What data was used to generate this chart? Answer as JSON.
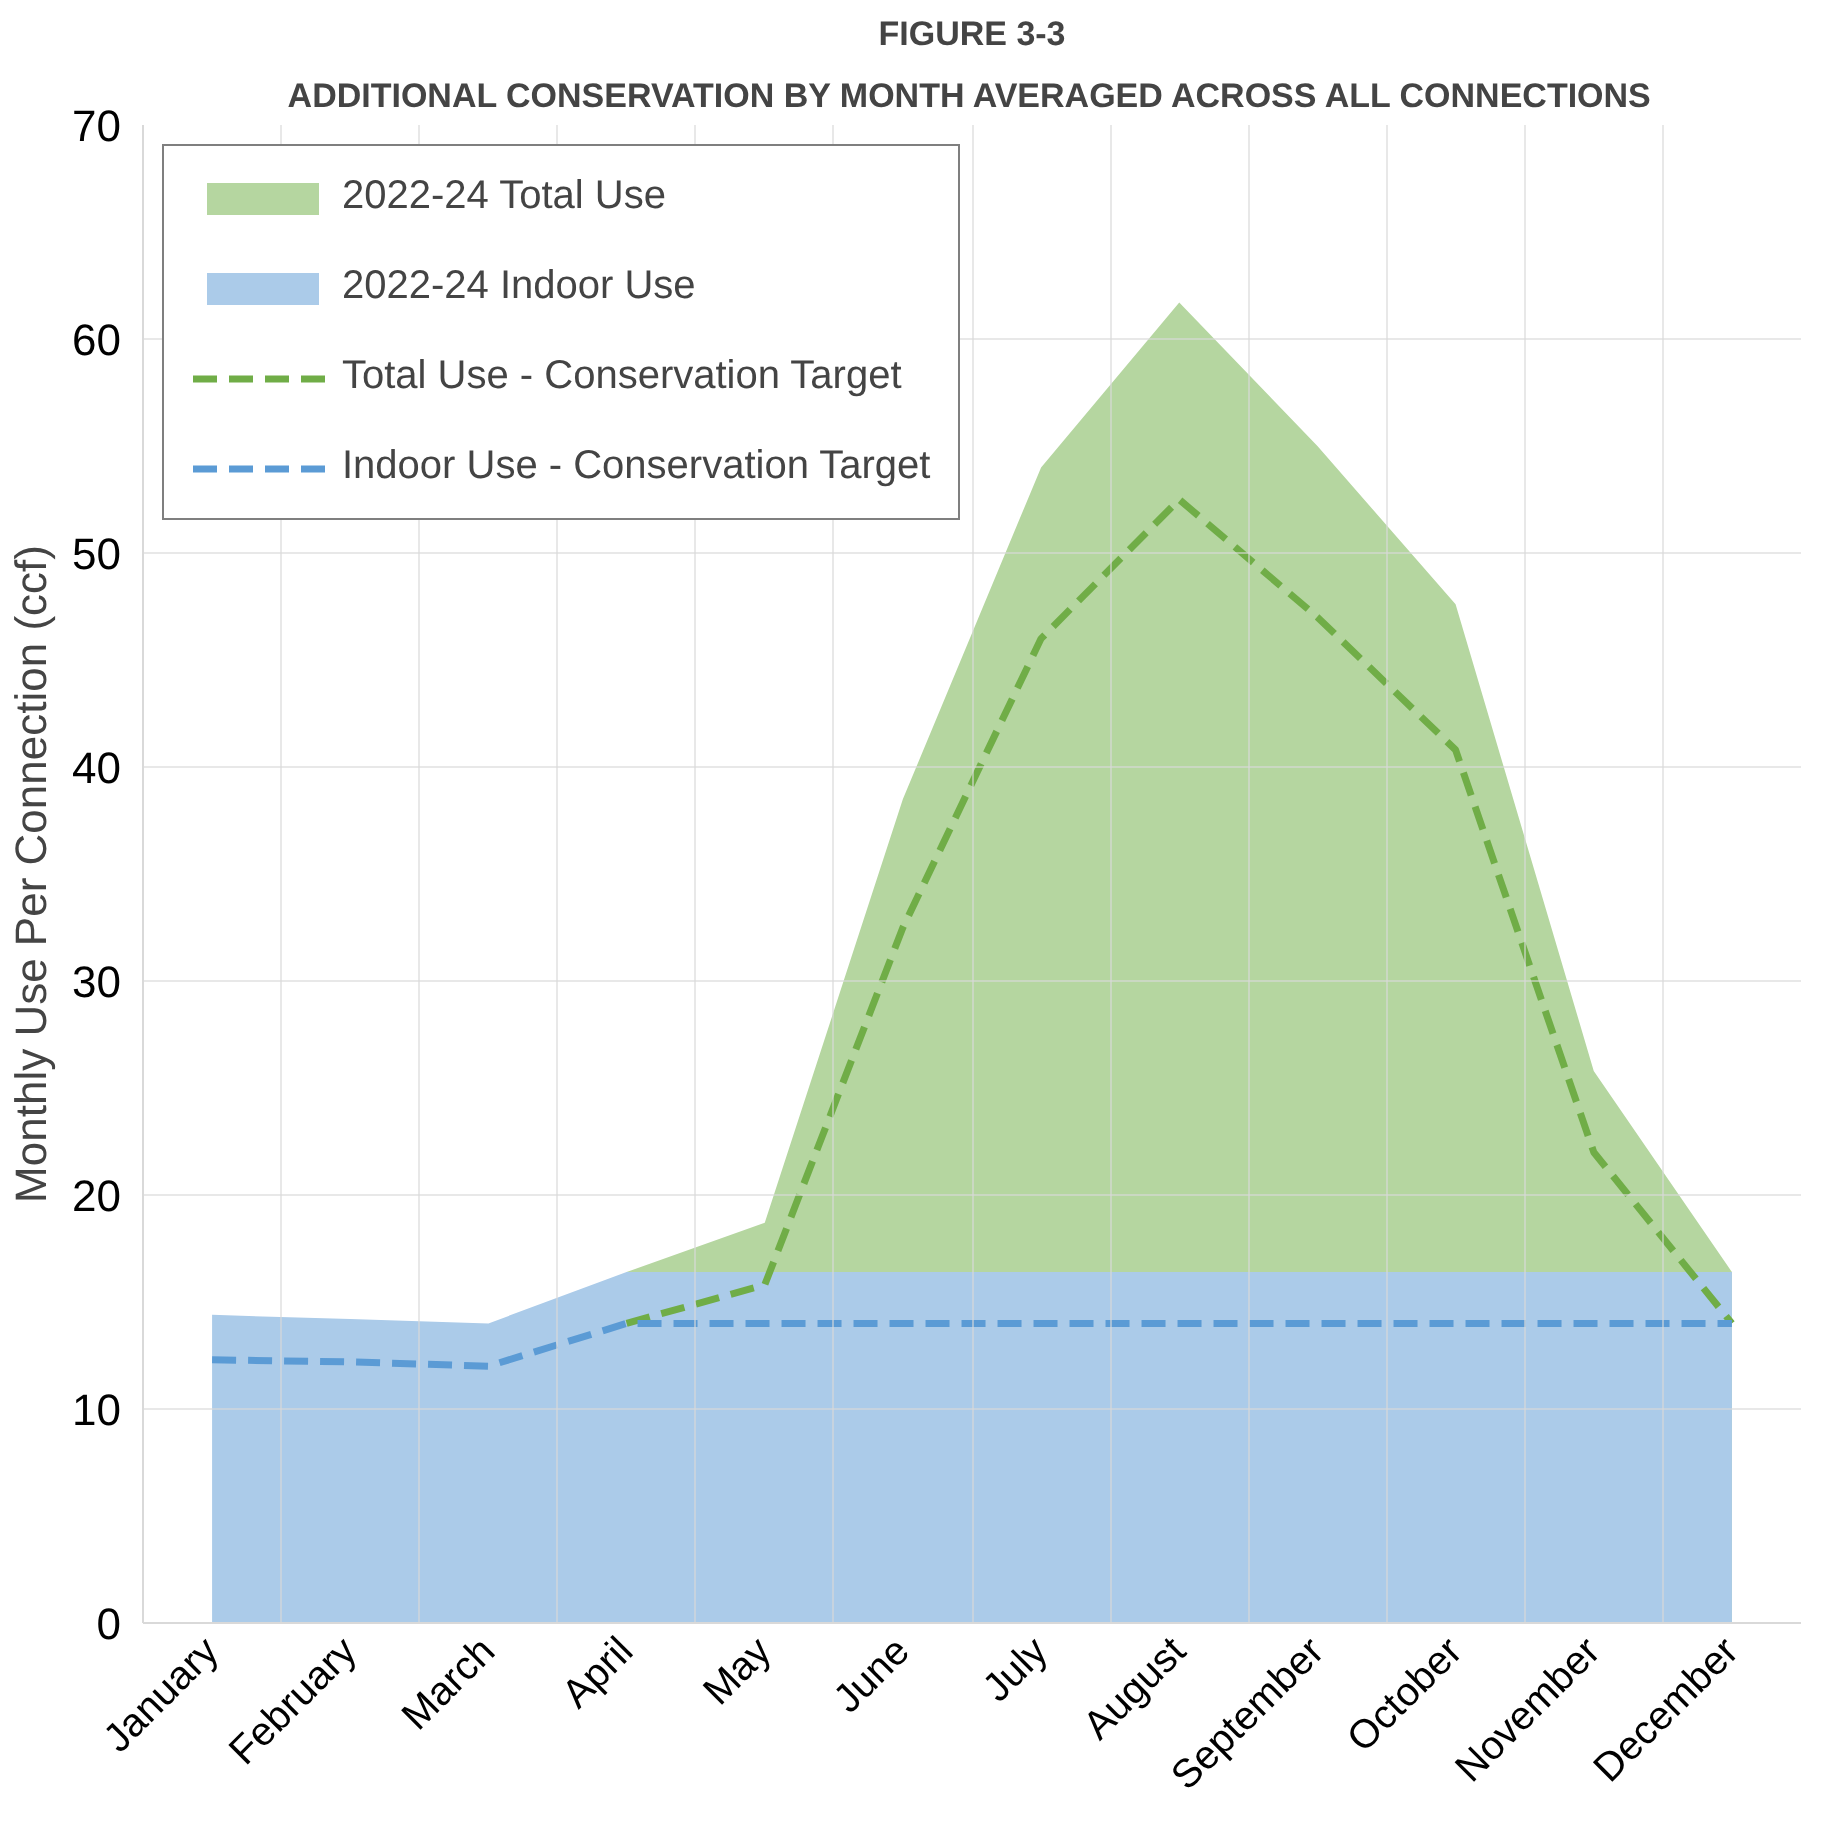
{
  "chart_data": {
    "type": "area",
    "title": "FIGURE 3-3",
    "subtitle": "ADDITIONAL CONSERVATION BY MONTH AVERAGED ACROSS ALL CONNECTIONS",
    "ylabel": "Monthly Use Per Connection (ccf)",
    "categories": [
      "January",
      "February",
      "March",
      "April",
      "May",
      "June",
      "July",
      "August",
      "September",
      "October",
      "November",
      "December"
    ],
    "ylim": [
      0,
      70
    ],
    "yticks": [
      0,
      10,
      20,
      30,
      40,
      50,
      60,
      70
    ],
    "grid": true,
    "legend": "top left",
    "series": [
      {
        "name": "2022-24 Total Use",
        "color": "#b5d6a0",
        "values": [
          null,
          null,
          null,
          16.4,
          18.7,
          38.5,
          54.0,
          61.7,
          55.0,
          47.6,
          25.8,
          16.4
        ]
      },
      {
        "name": "2022-24 Indoor Use",
        "color": "#abcbe9",
        "values": [
          14.4,
          14.2,
          14.0,
          16.4,
          16.4,
          16.4,
          16.4,
          16.4,
          16.4,
          16.4,
          16.4,
          16.4
        ]
      },
      {
        "name": "Total Use - Conservation Target",
        "type": "line",
        "line_style": "dashed",
        "color": "#70ad47",
        "values": [
          null,
          null,
          null,
          14.0,
          15.8,
          32.5,
          46.0,
          52.5,
          47.0,
          40.8,
          22.0,
          14.0
        ]
      },
      {
        "name": "Indoor Use - Conservation Target",
        "type": "line",
        "line_style": "dashed",
        "color": "#5b9bd5",
        "values": [
          12.3,
          12.2,
          12.0,
          14.0,
          14.0,
          14.0,
          14.0,
          14.0,
          14.0,
          14.0,
          14.0,
          14.0
        ]
      }
    ]
  }
}
